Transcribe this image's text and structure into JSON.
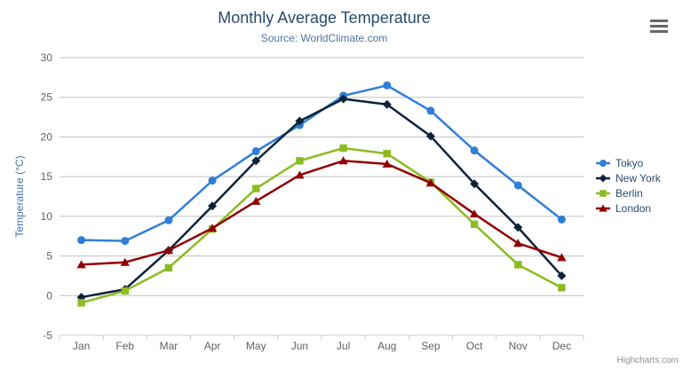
{
  "header": {
    "title": "Monthly Average Temperature",
    "subtitle": "Source: WorldClimate.com"
  },
  "icons": {
    "export_menu": "hamburger"
  },
  "chart_data": {
    "type": "line",
    "title": "Monthly Average Temperature",
    "subtitle": "Source: WorldClimate.com",
    "categories": [
      "Jan",
      "Feb",
      "Mar",
      "Apr",
      "May",
      "Jun",
      "Jul",
      "Aug",
      "Sep",
      "Oct",
      "Nov",
      "Dec"
    ],
    "xlabel": "",
    "ylabel": "Temperature (°C)",
    "ylim": [
      -5,
      30
    ],
    "ytick_interval": 5,
    "grid": true,
    "legend_position": "right",
    "series": [
      {
        "name": "Tokyo",
        "color": "#2f7ed8",
        "marker": "circle",
        "values": [
          7.0,
          6.9,
          9.5,
          14.5,
          18.2,
          21.5,
          25.2,
          26.5,
          23.3,
          18.3,
          13.9,
          9.6
        ]
      },
      {
        "name": "New York",
        "color": "#0d233a",
        "marker": "diamond",
        "values": [
          -0.2,
          0.8,
          5.7,
          11.3,
          17.0,
          22.0,
          24.8,
          24.1,
          20.1,
          14.1,
          8.6,
          2.5
        ]
      },
      {
        "name": "Berlin",
        "color": "#8bbc21",
        "marker": "square",
        "values": [
          -0.9,
          0.6,
          3.5,
          8.4,
          13.5,
          17.0,
          18.6,
          17.9,
          14.3,
          9.0,
          3.9,
          1.0
        ]
      },
      {
        "name": "London",
        "color": "#910000",
        "marker": "triangle",
        "values": [
          3.9,
          4.2,
          5.7,
          8.5,
          11.9,
          15.2,
          17.0,
          16.6,
          14.2,
          10.3,
          6.6,
          4.8
        ]
      }
    ]
  },
  "credits": {
    "label": "Highcharts.com"
  },
  "colors": {
    "title": "#274b6d",
    "subtitle": "#4d759e",
    "axis_title": "#4572a7",
    "tick_label": "#606060",
    "grid_line": "#c0c0c0",
    "axis_line": "#c0d0e0",
    "legend_text": "#274b6d",
    "credits": "#909090"
  }
}
